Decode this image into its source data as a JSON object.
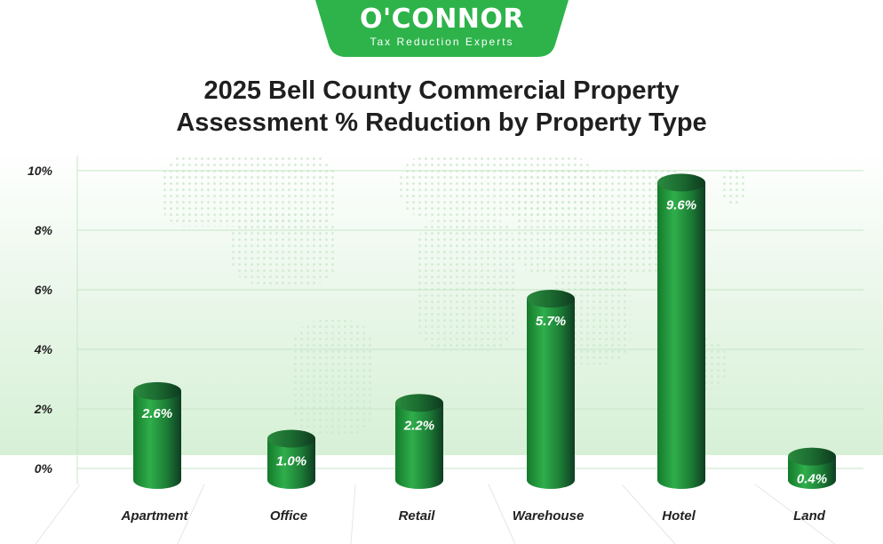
{
  "brand": {
    "name": "O'CONNOR",
    "tagline": "Tax Reduction Experts",
    "color": "#2db34a"
  },
  "header": {
    "title_line1": "2025 Bell County Commercial Property",
    "title_line2": "Assessment % Reduction by Property Type"
  },
  "chart_data": {
    "type": "bar",
    "title": "2025 Bell County Commercial Property Assessment % Reduction by Property Type",
    "categories": [
      "Apartment",
      "Office",
      "Retail",
      "Warehouse",
      "Hotel",
      "Land"
    ],
    "values": [
      2.6,
      1.0,
      2.2,
      5.7,
      9.6,
      0.4
    ],
    "data_labels": [
      "2.6%",
      "1.0%",
      "2.2%",
      "5.7%",
      "9.6%",
      "0.4%"
    ],
    "yticks": [
      "0%",
      "2%",
      "4%",
      "6%",
      "8%",
      "10%"
    ],
    "ytick_values": [
      0,
      2,
      4,
      6,
      8,
      10
    ],
    "ylim": [
      0,
      10
    ],
    "xlabel": "",
    "ylabel": "",
    "grid": true,
    "bar_color": "#1f8a3a",
    "bar_style": "cylinder"
  }
}
